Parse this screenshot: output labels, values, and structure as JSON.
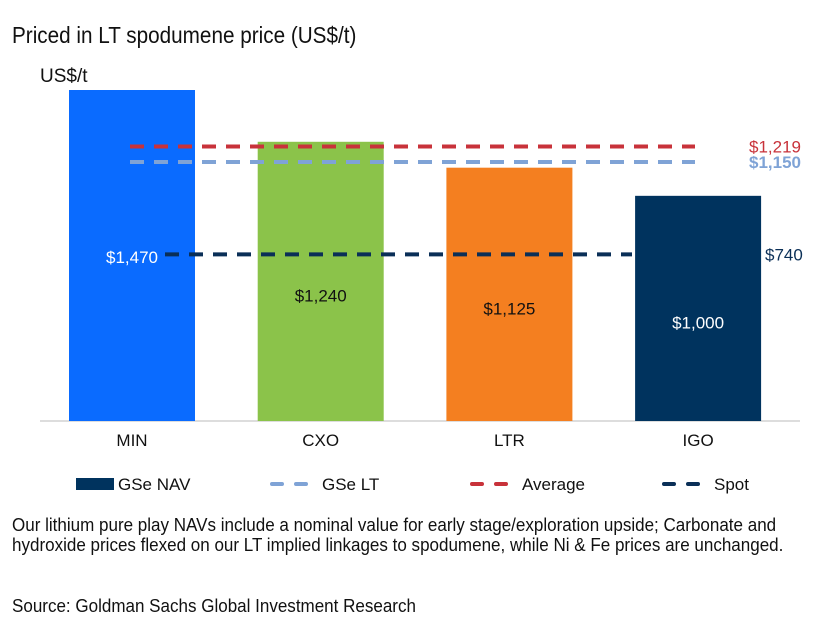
{
  "chart_data": {
    "type": "bar",
    "title": "Priced in LT spodumene price (US$/t)",
    "ylabel": "US$/t",
    "xlabel": "",
    "ylim": [
      0,
      1470
    ],
    "grid": false,
    "categories": [
      "MIN",
      "CXO",
      "LTR",
      "IGO"
    ],
    "series": [
      {
        "name": "GSe NAV",
        "values": [
          1470,
          1240,
          1125,
          1000
        ],
        "labels": [
          "$1,470",
          "$1,240",
          "$1,125",
          "$1,000"
        ],
        "colors": [
          "#0A6BFF",
          "#8BC34A",
          "#F47F20",
          "#00335E"
        ],
        "label_colors": [
          "#ffffff",
          "#111111",
          "#111111",
          "#ffffff"
        ]
      }
    ],
    "reference_lines": [
      {
        "name": "GSe LT",
        "value": 1150,
        "label": "$1,150",
        "color": "#7FA3D6"
      },
      {
        "name": "Average",
        "value": 1219,
        "label": "$1,219",
        "color": "#C8323A"
      },
      {
        "name": "Spot",
        "value": 740,
        "label": "$740",
        "color": "#0A2F57"
      }
    ],
    "legend": {
      "placement": "bottom",
      "entries": [
        "GSe NAV",
        "GSe LT",
        "Average",
        "Spot"
      ]
    }
  },
  "footnote": "Our lithium pure play NAVs include a nominal value for early stage/exploration upside; Carbonate and hydroxide prices flexed on our LT implied linkages to spodumene, while Ni & Fe prices are unchanged.",
  "source": "Source: Goldman Sachs Global Investment Research"
}
